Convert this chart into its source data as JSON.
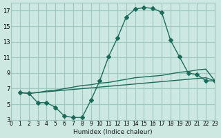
{
  "xlabel": "Humidex (Indice chaleur)",
  "ylabel": "",
  "bg_color": "#cce8e0",
  "grid_color": "#a0c8c0",
  "line_color": "#1a6b5a",
  "xlim": [
    0,
    23
  ],
  "ylim": [
    3,
    18
  ],
  "xticks": [
    0,
    1,
    2,
    3,
    4,
    5,
    6,
    7,
    8,
    9,
    10,
    11,
    12,
    13,
    14,
    15,
    16,
    17,
    18,
    19,
    20,
    21,
    22,
    23
  ],
  "yticks": [
    3,
    5,
    7,
    9,
    11,
    13,
    15,
    17
  ],
  "series": [
    {
      "x": [
        1,
        2,
        3,
        4,
        5,
        6,
        7,
        8,
        9,
        10,
        11,
        12,
        13,
        14,
        15,
        16,
        17,
        18,
        19,
        20,
        21,
        22,
        23
      ],
      "y": [
        6.5,
        6.4,
        5.2,
        5.2,
        4.6,
        3.5,
        3.3,
        3.3,
        5.5,
        8.0,
        11.1,
        13.5,
        16.2,
        17.2,
        17.4,
        17.3,
        16.8,
        13.2,
        11.1,
        9.0,
        8.8,
        8.0,
        8.0
      ],
      "marker": "D",
      "markersize": 3
    },
    {
      "x": [
        1,
        2,
        3,
        4,
        5,
        6,
        7,
        8,
        9,
        10,
        11,
        12,
        13,
        14,
        15,
        16,
        17,
        18,
        19,
        20,
        21,
        22,
        23
      ],
      "y": [
        6.5,
        6.4,
        6.5,
        6.7,
        6.8,
        7.0,
        7.2,
        7.4,
        7.5,
        7.7,
        7.8,
        8.0,
        8.2,
        8.4,
        8.5,
        8.6,
        8.7,
        8.9,
        9.1,
        9.2,
        9.4,
        9.5,
        8.0
      ],
      "marker": null,
      "markersize": 0
    },
    {
      "x": [
        1,
        2,
        3,
        4,
        5,
        6,
        7,
        8,
        9,
        10,
        11,
        12,
        13,
        14,
        15,
        16,
        17,
        18,
        19,
        20,
        21,
        22,
        23
      ],
      "y": [
        6.5,
        6.4,
        6.5,
        6.6,
        6.7,
        6.8,
        6.9,
        7.0,
        7.1,
        7.2,
        7.3,
        7.4,
        7.5,
        7.6,
        7.7,
        7.8,
        7.9,
        8.0,
        8.1,
        8.2,
        8.3,
        8.4,
        8.0
      ],
      "marker": null,
      "markersize": 0
    }
  ]
}
